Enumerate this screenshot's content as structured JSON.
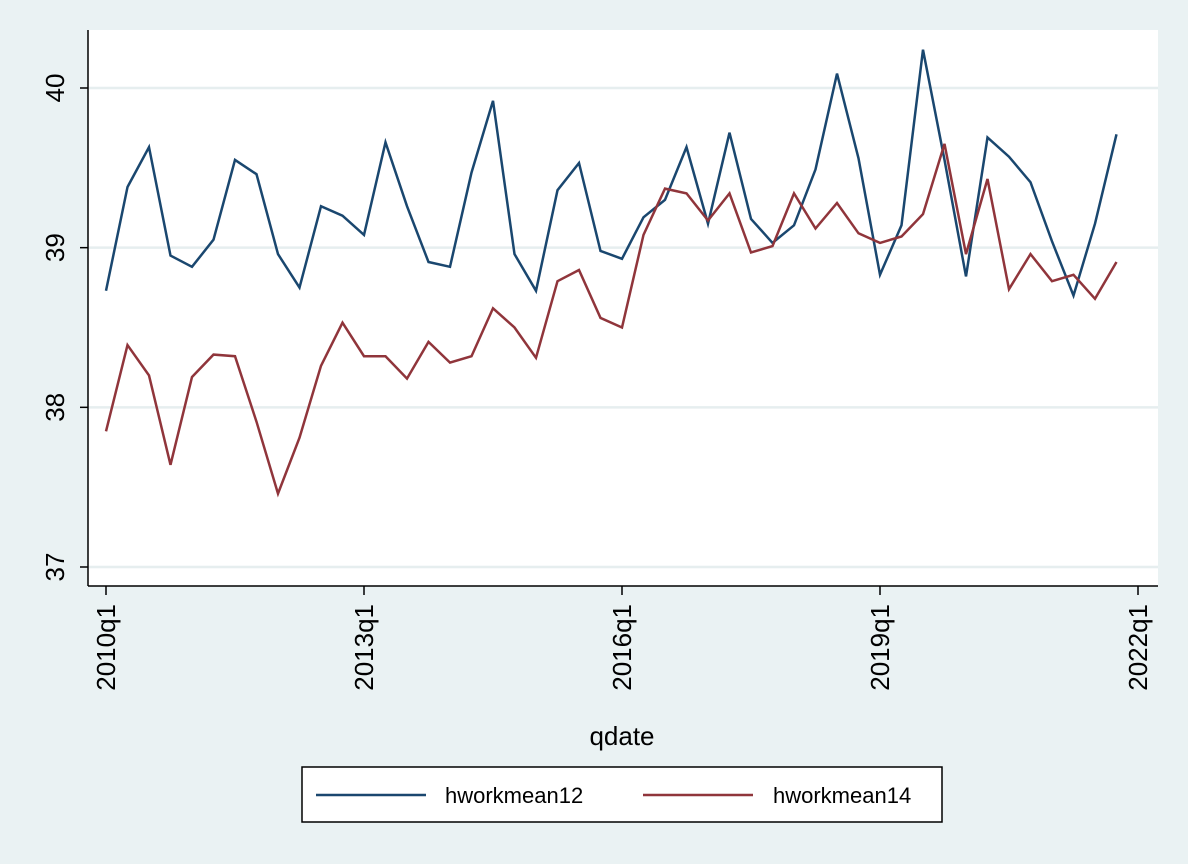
{
  "chart_data": {
    "type": "line",
    "title": "",
    "xlabel": "qdate",
    "ylabel": "",
    "x": [
      "2010q1",
      "2010q2",
      "2010q3",
      "2010q4",
      "2011q1",
      "2011q2",
      "2011q3",
      "2011q4",
      "2012q1",
      "2012q2",
      "2012q3",
      "2012q4",
      "2013q1",
      "2013q2",
      "2013q3",
      "2013q4",
      "2014q1",
      "2014q2",
      "2014q3",
      "2014q4",
      "2015q1",
      "2015q2",
      "2015q3",
      "2015q4",
      "2016q1",
      "2016q2",
      "2016q3",
      "2016q4",
      "2017q1",
      "2017q2",
      "2017q3",
      "2017q4",
      "2018q1",
      "2018q2",
      "2018q3",
      "2018q4",
      "2019q1",
      "2019q2",
      "2019q3",
      "2019q4",
      "2020q1",
      "2020q2",
      "2020q3",
      "2020q4",
      "2021q1",
      "2021q2",
      "2021q3",
      "2021q4"
    ],
    "xticks": [
      "2010q1",
      "2013q1",
      "2016q1",
      "2019q1",
      "2022q1"
    ],
    "xlim": [
      "2010q1",
      "2022q1"
    ],
    "ylim": [
      37,
      40.3
    ],
    "yticks": [
      37,
      38,
      39,
      40
    ],
    "grid": true,
    "legend": "bottom",
    "series": [
      {
        "name": "hworkmean12",
        "color": "#1a476f",
        "values": [
          38.73,
          39.38,
          39.63,
          38.95,
          38.88,
          39.05,
          39.55,
          39.46,
          38.96,
          38.75,
          39.26,
          39.2,
          39.08,
          39.66,
          39.26,
          38.91,
          38.88,
          39.47,
          39.92,
          38.96,
          38.73,
          39.36,
          39.53,
          38.98,
          38.93,
          39.19,
          39.3,
          39.63,
          39.15,
          39.72,
          39.18,
          39.03,
          39.14,
          39.49,
          40.09,
          39.56,
          38.83,
          39.14,
          40.24,
          39.55,
          38.82,
          39.69,
          39.57,
          39.41,
          39.04,
          38.7,
          39.15,
          39.71
        ]
      },
      {
        "name": "hworkmean14",
        "color": "#90353b",
        "values": [
          37.85,
          38.39,
          38.2,
          37.64,
          38.19,
          38.33,
          38.32,
          37.91,
          37.46,
          37.81,
          38.26,
          38.53,
          38.32,
          38.32,
          38.18,
          38.41,
          38.28,
          38.32,
          38.62,
          38.5,
          38.31,
          38.79,
          38.86,
          38.56,
          38.5,
          39.08,
          39.37,
          39.34,
          39.17,
          39.34,
          38.97,
          39.01,
          39.34,
          39.12,
          39.28,
          39.09,
          39.03,
          39.07,
          39.21,
          39.65,
          38.96,
          39.43,
          38.74,
          38.96,
          38.79,
          38.83,
          38.68,
          38.91
        ]
      }
    ]
  }
}
